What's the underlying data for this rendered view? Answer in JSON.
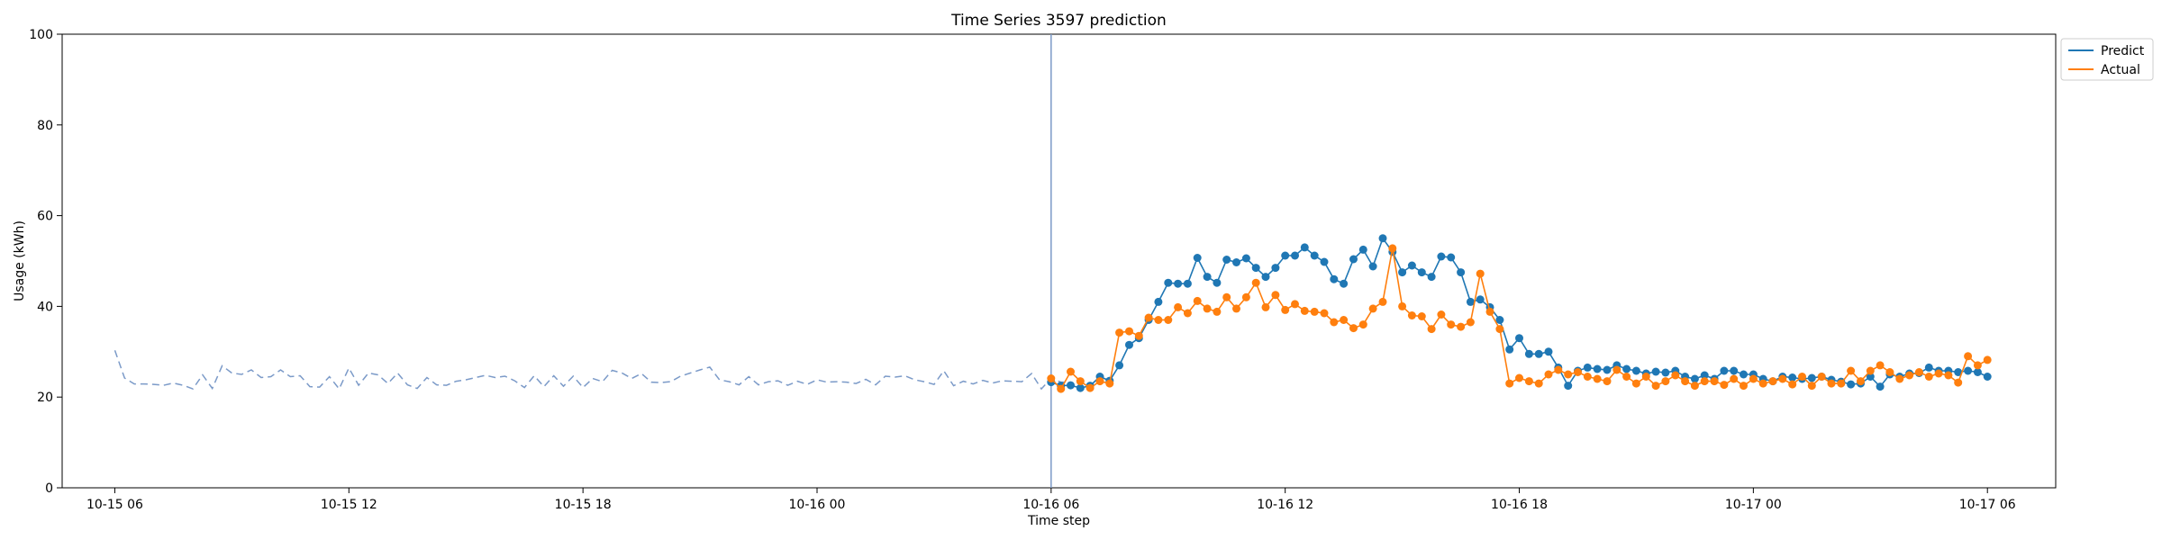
{
  "chart_data": {
    "type": "line",
    "title": "Time Series 3597 prediction",
    "xlabel": "Time step",
    "ylabel": "Usage (kWh)",
    "ylim": [
      0,
      100
    ],
    "xlim": [
      "2023-10-15 04:39",
      "2023-10-17 07:45"
    ],
    "grid": false,
    "legend_position": "outside-top-right",
    "x_ticks": [
      {
        "label": "10-15 06",
        "at": "2023-10-15 06:00"
      },
      {
        "label": "10-15 12",
        "at": "2023-10-15 12:00"
      },
      {
        "label": "10-15 18",
        "at": "2023-10-15 18:00"
      },
      {
        "label": "10-16 00",
        "at": "2023-10-16 00:00"
      },
      {
        "label": "10-16 06",
        "at": "2023-10-16 06:00"
      },
      {
        "label": "10-16 12",
        "at": "2023-10-16 12:00"
      },
      {
        "label": "10-16 18",
        "at": "2023-10-16 18:00"
      },
      {
        "label": "10-17 00",
        "at": "2023-10-17 00:00"
      },
      {
        "label": "10-17 06",
        "at": "2023-10-17 06:00"
      }
    ],
    "y_ticks": [
      0,
      20,
      40,
      60,
      80,
      100
    ],
    "forecast_start": "2023-10-16 06:00",
    "history": {
      "start": "2023-10-15 06:00",
      "interval_minutes": 15,
      "style": "dashed",
      "color": "#7b9ac8",
      "values": [
        30.3,
        24.2,
        22.9,
        22.9,
        22.8,
        22.6,
        23.1,
        22.6,
        21.8,
        24.9,
        21.9,
        26.9,
        25.3,
        25.0,
        26.0,
        24.3,
        24.5,
        26.0,
        24.5,
        24.7,
        22.3,
        22.2,
        24.5,
        21.8,
        26.4,
        22.6,
        25.3,
        24.9,
        23.0,
        25.3,
        22.7,
        21.9,
        24.3,
        22.7,
        22.6,
        23.5,
        23.8,
        24.3,
        24.8,
        24.3,
        24.6,
        23.6,
        22.1,
        24.7,
        22.3,
        24.7,
        22.4,
        24.6,
        22.1,
        24.1,
        23.4,
        25.9,
        25.3,
        24.1,
        25.2,
        23.3,
        23.2,
        23.4,
        24.6,
        25.3,
        26.0,
        26.6,
        23.8,
        23.4,
        22.7,
        24.5,
        22.7,
        23.4,
        23.6,
        22.6,
        23.5,
        22.8,
        23.8,
        23.3,
        23.4,
        23.3,
        23.0,
        23.9,
        22.7,
        24.6,
        24.4,
        24.7,
        23.8,
        23.4,
        22.8,
        25.8,
        22.5,
        23.5,
        22.9,
        23.7,
        23.1,
        23.6,
        23.5,
        23.4,
        25.2,
        21.8,
        24.1,
        23.3,
        23.3
      ]
    },
    "forecast_x": {
      "start": "2023-10-16 06:00",
      "interval_minutes": 15,
      "count": 97
    },
    "series": [
      {
        "name": "Predict",
        "color": "#1f77b4",
        "values": [
          23.3,
          22.5,
          22.6,
          22.0,
          22.5,
          24.5,
          23.6,
          27.0,
          31.5,
          33.0,
          37.0,
          41.0,
          45.2,
          45.0,
          45.0,
          50.7,
          46.5,
          45.2,
          50.3,
          49.7,
          50.6,
          48.5,
          46.5,
          48.5,
          51.2,
          51.2,
          53.0,
          51.2,
          49.8,
          46.0,
          45.0,
          50.4,
          52.5,
          48.8,
          55.0,
          52.0,
          47.5,
          49.0,
          47.5,
          46.5,
          51.0,
          50.8,
          47.5,
          41.0,
          41.5,
          39.8,
          37.0,
          30.5,
          33.0,
          29.5,
          29.5,
          30.0,
          26.5,
          22.5,
          25.8,
          26.5,
          26.2,
          26.0,
          27.0,
          26.2,
          25.8,
          25.2,
          25.6,
          25.4,
          25.8,
          24.5,
          24.0,
          24.8,
          24.0,
          25.8,
          25.8,
          25.0,
          25.0,
          24.0,
          23.5,
          24.5,
          24.3,
          24.0,
          24.2,
          24.5,
          23.8,
          23.4,
          22.8,
          23.0,
          24.5,
          22.3,
          25.0,
          24.5,
          25.2,
          25.3,
          26.5,
          25.8,
          25.8,
          25.5,
          25.8,
          25.5,
          24.5
        ]
      },
      {
        "name": "Actual",
        "color": "#ff7f0e",
        "values": [
          24.1,
          21.8,
          25.6,
          23.5,
          22.0,
          23.5,
          23.0,
          34.2,
          34.5,
          33.5,
          37.5,
          37.0,
          37.0,
          39.8,
          38.5,
          41.2,
          39.5,
          38.8,
          42.0,
          39.5,
          42.0,
          45.2,
          39.8,
          42.5,
          39.2,
          40.5,
          39.0,
          38.8,
          38.5,
          36.5,
          37.0,
          35.2,
          36.0,
          39.5,
          41.0,
          52.8,
          40.0,
          38.0,
          37.8,
          35.0,
          38.2,
          36.0,
          35.5,
          36.5,
          47.2,
          38.8,
          35.0,
          23.0,
          24.2,
          23.5,
          23.0,
          25.0,
          26.0,
          25.0,
          25.5,
          24.5,
          24.0,
          23.5,
          26.0,
          24.5,
          23.0,
          24.5,
          22.5,
          23.5,
          24.8,
          23.5,
          22.5,
          23.5,
          23.5,
          22.7,
          24.0,
          22.5,
          24.0,
          23.0,
          23.5,
          24.0,
          22.8,
          24.5,
          22.5,
          24.5,
          23.0,
          23.0,
          25.8,
          23.5,
          25.8,
          27.0,
          25.5,
          24.0,
          24.8,
          25.5,
          24.5,
          25.2,
          24.8,
          23.2,
          29.0,
          27.0,
          28.2
        ]
      }
    ]
  }
}
